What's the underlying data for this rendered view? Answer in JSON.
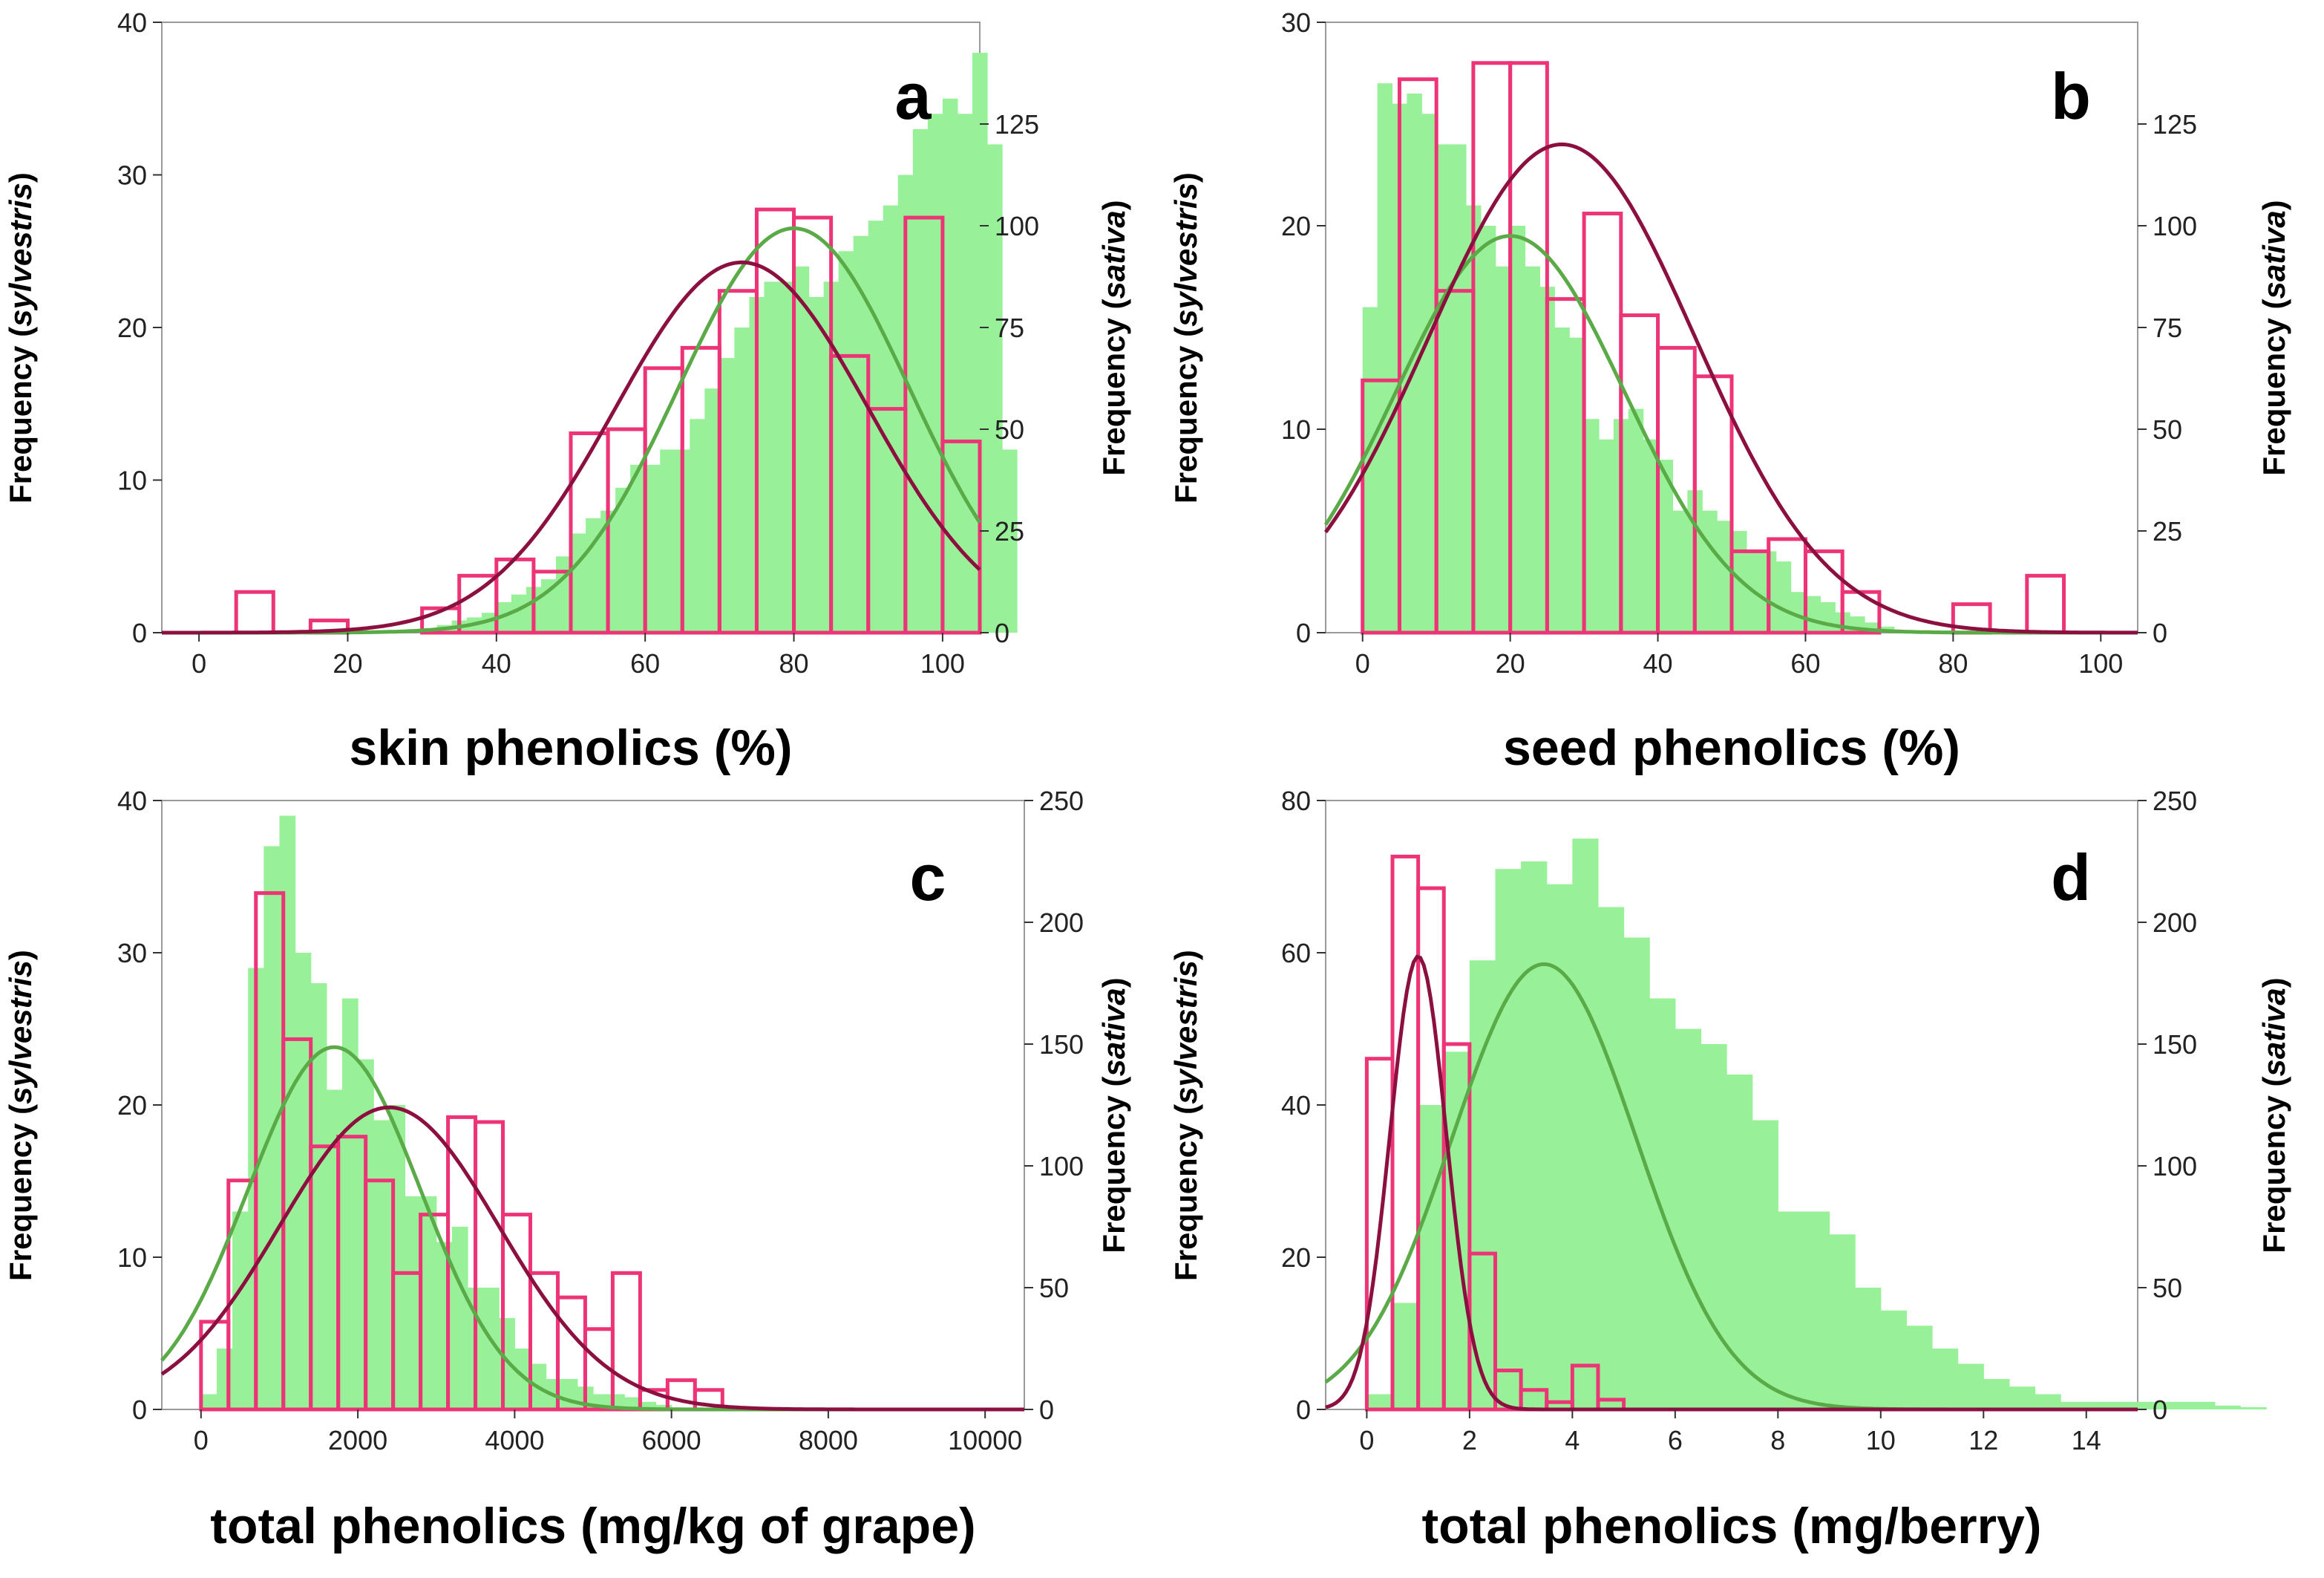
{
  "colors": {
    "sylvestris_fill": "#98f198",
    "sativa_edge": "#ec3477",
    "sylvestris_curve": "#5aaa48",
    "sativa_curve": "#8b1040",
    "frame": "#9a9a9a"
  },
  "chart_data": [
    {
      "type": "histogram",
      "panel_letter": "a",
      "xlabel": "skin phenolics (%)",
      "ylabel_left": {
        "prefix": "Frequency (",
        "italic": "sylvestris",
        "suffix": ")"
      },
      "ylabel_right": {
        "prefix": "Frequency (",
        "italic": "sativa",
        "suffix": ")"
      },
      "xlim": [
        -5,
        105
      ],
      "x_ticks": [
        0,
        20,
        40,
        60,
        80,
        100
      ],
      "x_tick_labels": [
        "0",
        "20",
        "40",
        "60",
        "80",
        "100"
      ],
      "ylim_left": [
        0,
        40
      ],
      "y_ticks_left": [
        0,
        10,
        20,
        30,
        40
      ],
      "y_tick_labels_left": [
        "0",
        "10",
        "20",
        "30",
        "40"
      ],
      "ylim_right": [
        0,
        150
      ],
      "y_ticks_right": [
        0,
        25,
        50,
        75,
        100,
        125
      ],
      "y_tick_labels_right": [
        "0",
        "25",
        "50",
        "75",
        "100",
        "125"
      ],
      "series": [
        {
          "name": "sylvestris",
          "axis": "left",
          "style": "filled-bars",
          "bin_start": 30,
          "bin_width": 2,
          "values": [
            0.3,
            0.5,
            0.8,
            1,
            1.3,
            2,
            2.5,
            3,
            3.5,
            5,
            6.5,
            7.5,
            8,
            9.5,
            11,
            11,
            12,
            12,
            14,
            16,
            18,
            20,
            22,
            23,
            23,
            24,
            22,
            23,
            25,
            26,
            27,
            28,
            30,
            33,
            34,
            35,
            34,
            38,
            32,
            12
          ]
        },
        {
          "name": "sativa",
          "axis": "right",
          "style": "outline-bars",
          "bin_start": 0,
          "bin_width": 5,
          "values": [
            0,
            10,
            0,
            3,
            0,
            0,
            6,
            14,
            18,
            15,
            49,
            50,
            65,
            70,
            84,
            104,
            102,
            68,
            55,
            102,
            47
          ]
        },
        {
          "name": "sylvestris normal fit",
          "axis": "left",
          "style": "curve",
          "mean": 80,
          "sd": 15.5,
          "peak": 26.5
        },
        {
          "name": "sativa normal fit",
          "axis": "right",
          "style": "curve",
          "mean": 73,
          "sd": 17,
          "peak": 91
        }
      ]
    },
    {
      "type": "histogram",
      "panel_letter": "b",
      "xlabel": "seed phenolics (%)",
      "ylabel_left": {
        "prefix": "Frequency (",
        "italic": "sylvestris",
        "suffix": ")"
      },
      "ylabel_right": {
        "prefix": "Frequency (",
        "italic": "sativa",
        "suffix": ")"
      },
      "xlim": [
        -5,
        105
      ],
      "x_ticks": [
        0,
        20,
        40,
        60,
        80,
        100
      ],
      "x_tick_labels": [
        "0",
        "20",
        "40",
        "60",
        "80",
        "100"
      ],
      "ylim_left": [
        0,
        30
      ],
      "y_ticks_left": [
        0,
        10,
        20,
        30
      ],
      "y_tick_labels_left": [
        "0",
        "10",
        "20",
        "30"
      ],
      "ylim_right": [
        0,
        150
      ],
      "y_ticks_right": [
        0,
        25,
        50,
        75,
        100,
        125
      ],
      "y_tick_labels_right": [
        "0",
        "25",
        "50",
        "75",
        "100",
        "125"
      ],
      "series": [
        {
          "name": "sylvestris",
          "axis": "left",
          "style": "filled-bars",
          "bin_start": 0,
          "bin_width": 2,
          "values": [
            16,
            27,
            26,
            26.5,
            25.5,
            24,
            24,
            21,
            20,
            18,
            20,
            18,
            17,
            15,
            14.5,
            10.5,
            9.5,
            10.5,
            11,
            9.5,
            8.5,
            6,
            7,
            6,
            5.5,
            5,
            4,
            4,
            3.5,
            2,
            1.8,
            1.5,
            1,
            0.8,
            0.5,
            0.3
          ]
        },
        {
          "name": "sativa",
          "axis": "right",
          "style": "outline-bars",
          "bin_start": 0,
          "bin_width": 5,
          "values": [
            62,
            136,
            84,
            140,
            140,
            82,
            103,
            78,
            70,
            63,
            20,
            23,
            20,
            10,
            0,
            0,
            7,
            0,
            14,
            0
          ]
        },
        {
          "name": "sylvestris normal fit",
          "axis": "left",
          "style": "curve",
          "mean": 20,
          "sd": 15.5,
          "peak": 19.5
        },
        {
          "name": "sativa normal fit",
          "axis": "right",
          "style": "curve",
          "mean": 27,
          "sd": 18,
          "peak": 120
        }
      ]
    },
    {
      "type": "histogram",
      "panel_letter": "c",
      "xlabel": "total phenolics (mg/kg of grape)",
      "ylabel_left": {
        "prefix": "Frequency (",
        "italic": "sylvestris",
        "suffix": ")"
      },
      "ylabel_right": {
        "prefix": "Frequency (",
        "italic": "sativa",
        "suffix": ")"
      },
      "xlim": [
        -500,
        10500
      ],
      "x_ticks": [
        0,
        2000,
        4000,
        6000,
        8000,
        10000
      ],
      "x_tick_labels": [
        "0",
        "2000",
        "4000",
        "6000",
        "8000",
        "10000"
      ],
      "ylim_left": [
        0,
        40
      ],
      "y_ticks_left": [
        0,
        10,
        20,
        30,
        40
      ],
      "y_tick_labels_left": [
        "0",
        "10",
        "20",
        "30",
        "40"
      ],
      "ylim_right": [
        0,
        250
      ],
      "y_ticks_right": [
        0,
        50,
        100,
        150,
        200,
        250
      ],
      "y_tick_labels_right": [
        "0",
        "50",
        "100",
        "150",
        "200",
        "250"
      ],
      "series": [
        {
          "name": "sylvestris",
          "axis": "left",
          "style": "filled-bars",
          "bin_start": 0,
          "bin_width": 200,
          "values": [
            1,
            4,
            13,
            29,
            37,
            39,
            30,
            28,
            21,
            27,
            23,
            19,
            20,
            14,
            14,
            11,
            12,
            8,
            8,
            6,
            4,
            3,
            2,
            2,
            1.5,
            1,
            1,
            0.8,
            0.5,
            0.3
          ]
        },
        {
          "name": "sativa",
          "axis": "right",
          "style": "outline-bars",
          "bin_start": 0,
          "bin_width": 350,
          "values": [
            36,
            94,
            212,
            152,
            108,
            112,
            94,
            56,
            80,
            120,
            118,
            80,
            56,
            46,
            33,
            56,
            8,
            12,
            8
          ]
        },
        {
          "name": "sylvestris normal fit",
          "axis": "left",
          "style": "curve",
          "mean": 1700,
          "sd": 1100,
          "peak": 23.8
        },
        {
          "name": "sativa normal fit",
          "axis": "right",
          "style": "curve",
          "mean": 2400,
          "sd": 1400,
          "peak": 124
        }
      ]
    },
    {
      "type": "histogram",
      "panel_letter": "d",
      "xlabel": "total phenolics (mg/berry)",
      "ylabel_left": {
        "prefix": "Frequency (",
        "italic": "sylvestris",
        "suffix": ")"
      },
      "ylabel_right": {
        "prefix": "Frequency (",
        "italic": "sativa",
        "suffix": ")"
      },
      "xlim": [
        -0.8,
        15
      ],
      "x_ticks": [
        0,
        2,
        4,
        6,
        8,
        10,
        12,
        14
      ],
      "x_tick_labels": [
        "0",
        "2",
        "4",
        "6",
        "8",
        "10",
        "12",
        "14"
      ],
      "ylim_left": [
        0,
        80
      ],
      "y_ticks_left": [
        0,
        20,
        40,
        60,
        80
      ],
      "y_tick_labels_left": [
        "0",
        "20",
        "40",
        "60",
        "80"
      ],
      "ylim_right": [
        0,
        250
      ],
      "y_ticks_right": [
        0,
        50,
        100,
        150,
        200,
        250
      ],
      "y_tick_labels_right": [
        "0",
        "50",
        "100",
        "150",
        "200",
        "250"
      ],
      "series": [
        {
          "name": "sylvestris",
          "axis": "left",
          "style": "filled-bars",
          "bin_start": 0,
          "bin_width": 0.5,
          "values": [
            2,
            14,
            40,
            47,
            59,
            71,
            72,
            69,
            75,
            66,
            62,
            54,
            50,
            48,
            44,
            38,
            26,
            26,
            23,
            16,
            13,
            11,
            8,
            6,
            4,
            3,
            2,
            1,
            1,
            1,
            1,
            1,
            1,
            0.5,
            0.3
          ]
        },
        {
          "name": "sativa",
          "axis": "right",
          "style": "outline-bars",
          "bin_start": 0,
          "bin_width": 0.5,
          "values": [
            144,
            227,
            214,
            150,
            64,
            16,
            8,
            3,
            18,
            4
          ]
        },
        {
          "name": "sylvestris normal fit",
          "axis": "left",
          "style": "curve",
          "mean": 3.45,
          "sd": 1.8,
          "peak": 58.5
        },
        {
          "name": "sativa normal fit",
          "axis": "right",
          "style": "curve",
          "mean": 1.0,
          "sd": 0.55,
          "peak": 186
        }
      ]
    }
  ]
}
